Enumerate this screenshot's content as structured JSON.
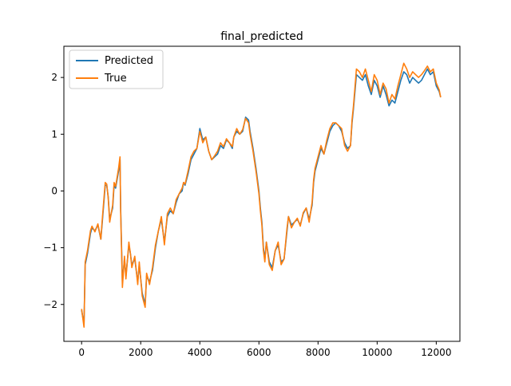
{
  "chart_data": {
    "type": "line",
    "title": "final_predicted",
    "xlabel": "",
    "ylabel": "",
    "xlim": [
      -600,
      12800
    ],
    "ylim": [
      -2.65,
      2.55
    ],
    "xticks": [
      0,
      2000,
      4000,
      6000,
      8000,
      10000,
      12000
    ],
    "xtick_labels": [
      "0",
      "2000",
      "4000",
      "6000",
      "8000",
      "10000",
      "12000"
    ],
    "yticks": [
      -2,
      -1,
      0,
      1,
      2
    ],
    "ytick_labels": [
      "−2",
      "−1",
      "0",
      "1",
      "2"
    ],
    "grid": false,
    "legend_position": "upper-left",
    "series": [
      {
        "name": "Predicted",
        "color": "#1f77b4",
        "points": [
          [
            0,
            -2.1
          ],
          [
            80,
            -2.35
          ],
          [
            120,
            -1.3
          ],
          [
            200,
            -1.1
          ],
          [
            300,
            -0.75
          ],
          [
            350,
            -0.65
          ],
          [
            450,
            -0.7
          ],
          [
            550,
            -0.6
          ],
          [
            650,
            -0.85
          ],
          [
            700,
            -0.55
          ],
          [
            800,
            0.1
          ],
          [
            850,
            0.1
          ],
          [
            900,
            -0.1
          ],
          [
            950,
            -0.5
          ],
          [
            1050,
            -0.3
          ],
          [
            1100,
            0.1
          ],
          [
            1150,
            0.05
          ],
          [
            1250,
            0.35
          ],
          [
            1300,
            0.55
          ],
          [
            1320,
            -0.3
          ],
          [
            1380,
            -1.6
          ],
          [
            1450,
            -1.2
          ],
          [
            1500,
            -1.5
          ],
          [
            1600,
            -0.95
          ],
          [
            1650,
            -1.1
          ],
          [
            1700,
            -1.3
          ],
          [
            1800,
            -1.2
          ],
          [
            1900,
            -1.6
          ],
          [
            1950,
            -1.3
          ],
          [
            2050,
            -1.8
          ],
          [
            2150,
            -2.0
          ],
          [
            2200,
            -1.5
          ],
          [
            2300,
            -1.6
          ],
          [
            2400,
            -1.4
          ],
          [
            2500,
            -1.0
          ],
          [
            2600,
            -0.7
          ],
          [
            2700,
            -0.5
          ],
          [
            2800,
            -0.9
          ],
          [
            2900,
            -0.45
          ],
          [
            3000,
            -0.35
          ],
          [
            3100,
            -0.4
          ],
          [
            3200,
            -0.2
          ],
          [
            3300,
            -0.05
          ],
          [
            3400,
            0.0
          ],
          [
            3450,
            0.15
          ],
          [
            3500,
            0.1
          ],
          [
            3600,
            0.3
          ],
          [
            3700,
            0.55
          ],
          [
            3800,
            0.65
          ],
          [
            3900,
            0.75
          ],
          [
            4000,
            1.1
          ],
          [
            4100,
            0.9
          ],
          [
            4200,
            0.95
          ],
          [
            4300,
            0.7
          ],
          [
            4400,
            0.55
          ],
          [
            4500,
            0.6
          ],
          [
            4600,
            0.65
          ],
          [
            4700,
            0.8
          ],
          [
            4800,
            0.75
          ],
          [
            4900,
            0.9
          ],
          [
            5000,
            0.85
          ],
          [
            5100,
            0.75
          ],
          [
            5150,
            0.95
          ],
          [
            5250,
            1.05
          ],
          [
            5350,
            1.0
          ],
          [
            5450,
            1.05
          ],
          [
            5550,
            1.3
          ],
          [
            5650,
            1.25
          ],
          [
            5700,
            1.05
          ],
          [
            5800,
            0.75
          ],
          [
            5900,
            0.4
          ],
          [
            6000,
            0.0
          ],
          [
            6050,
            -0.3
          ],
          [
            6100,
            -0.55
          ],
          [
            6150,
            -1.0
          ],
          [
            6200,
            -1.2
          ],
          [
            6250,
            -0.9
          ],
          [
            6350,
            -1.25
          ],
          [
            6450,
            -1.35
          ],
          [
            6550,
            -1.05
          ],
          [
            6650,
            -0.95
          ],
          [
            6750,
            -1.25
          ],
          [
            6850,
            -1.2
          ],
          [
            6950,
            -0.7
          ],
          [
            7000,
            -0.45
          ],
          [
            7100,
            -0.6
          ],
          [
            7200,
            -0.55
          ],
          [
            7300,
            -0.5
          ],
          [
            7400,
            -0.6
          ],
          [
            7500,
            -0.4
          ],
          [
            7600,
            -0.3
          ],
          [
            7700,
            -0.5
          ],
          [
            7800,
            -0.25
          ],
          [
            7850,
            0.15
          ],
          [
            7900,
            0.35
          ],
          [
            8000,
            0.55
          ],
          [
            8100,
            0.75
          ],
          [
            8200,
            0.65
          ],
          [
            8300,
            0.85
          ],
          [
            8400,
            1.05
          ],
          [
            8500,
            1.15
          ],
          [
            8600,
            1.2
          ],
          [
            8700,
            1.15
          ],
          [
            8800,
            1.05
          ],
          [
            8900,
            0.85
          ],
          [
            9000,
            0.75
          ],
          [
            9100,
            0.8
          ],
          [
            9150,
            1.2
          ],
          [
            9200,
            1.45
          ],
          [
            9300,
            2.05
          ],
          [
            9400,
            2.0
          ],
          [
            9500,
            1.95
          ],
          [
            9600,
            2.05
          ],
          [
            9700,
            1.85
          ],
          [
            9800,
            1.7
          ],
          [
            9900,
            1.95
          ],
          [
            10000,
            1.85
          ],
          [
            10100,
            1.65
          ],
          [
            10200,
            1.85
          ],
          [
            10300,
            1.7
          ],
          [
            10400,
            1.5
          ],
          [
            10500,
            1.6
          ],
          [
            10600,
            1.55
          ],
          [
            10700,
            1.75
          ],
          [
            10800,
            1.95
          ],
          [
            10900,
            2.1
          ],
          [
            11000,
            2.05
          ],
          [
            11100,
            1.9
          ],
          [
            11200,
            2.0
          ],
          [
            11300,
            1.95
          ],
          [
            11400,
            1.9
          ],
          [
            11500,
            1.95
          ],
          [
            11600,
            2.05
          ],
          [
            11700,
            2.15
          ],
          [
            11800,
            2.05
          ],
          [
            11900,
            2.1
          ],
          [
            12000,
            1.85
          ],
          [
            12100,
            1.75
          ],
          [
            12150,
            1.65
          ]
        ]
      },
      {
        "name": "True",
        "color": "#ff7f0e",
        "points": [
          [
            0,
            -2.08
          ],
          [
            80,
            -2.4
          ],
          [
            120,
            -1.25
          ],
          [
            200,
            -1.05
          ],
          [
            300,
            -0.7
          ],
          [
            350,
            -0.62
          ],
          [
            450,
            -0.72
          ],
          [
            550,
            -0.58
          ],
          [
            650,
            -0.85
          ],
          [
            700,
            -0.5
          ],
          [
            800,
            0.15
          ],
          [
            850,
            0.12
          ],
          [
            900,
            -0.12
          ],
          [
            950,
            -0.55
          ],
          [
            1050,
            -0.25
          ],
          [
            1100,
            0.15
          ],
          [
            1150,
            0.08
          ],
          [
            1250,
            0.4
          ],
          [
            1300,
            0.6
          ],
          [
            1320,
            -0.35
          ],
          [
            1380,
            -1.7
          ],
          [
            1450,
            -1.15
          ],
          [
            1500,
            -1.55
          ],
          [
            1600,
            -0.9
          ],
          [
            1650,
            -1.1
          ],
          [
            1700,
            -1.35
          ],
          [
            1800,
            -1.15
          ],
          [
            1900,
            -1.65
          ],
          [
            1950,
            -1.25
          ],
          [
            2050,
            -1.85
          ],
          [
            2150,
            -2.05
          ],
          [
            2200,
            -1.45
          ],
          [
            2300,
            -1.65
          ],
          [
            2400,
            -1.35
          ],
          [
            2500,
            -0.95
          ],
          [
            2600,
            -0.7
          ],
          [
            2700,
            -0.45
          ],
          [
            2800,
            -0.95
          ],
          [
            2900,
            -0.4
          ],
          [
            3000,
            -0.3
          ],
          [
            3100,
            -0.4
          ],
          [
            3200,
            -0.15
          ],
          [
            3300,
            -0.05
          ],
          [
            3400,
            0.05
          ],
          [
            3450,
            0.15
          ],
          [
            3500,
            0.12
          ],
          [
            3600,
            0.35
          ],
          [
            3700,
            0.6
          ],
          [
            3800,
            0.7
          ],
          [
            3900,
            0.75
          ],
          [
            4000,
            1.05
          ],
          [
            4100,
            0.85
          ],
          [
            4200,
            0.95
          ],
          [
            4300,
            0.7
          ],
          [
            4400,
            0.55
          ],
          [
            4500,
            0.62
          ],
          [
            4600,
            0.7
          ],
          [
            4700,
            0.85
          ],
          [
            4800,
            0.78
          ],
          [
            4900,
            0.92
          ],
          [
            5000,
            0.85
          ],
          [
            5100,
            0.78
          ],
          [
            5150,
            0.95
          ],
          [
            5250,
            1.1
          ],
          [
            5350,
            1.0
          ],
          [
            5450,
            1.08
          ],
          [
            5550,
            1.28
          ],
          [
            5650,
            1.2
          ],
          [
            5700,
            1.0
          ],
          [
            5800,
            0.7
          ],
          [
            5900,
            0.35
          ],
          [
            6000,
            -0.05
          ],
          [
            6050,
            -0.35
          ],
          [
            6100,
            -0.6
          ],
          [
            6150,
            -1.05
          ],
          [
            6200,
            -1.25
          ],
          [
            6250,
            -0.9
          ],
          [
            6350,
            -1.3
          ],
          [
            6450,
            -1.4
          ],
          [
            6550,
            -1.05
          ],
          [
            6650,
            -0.9
          ],
          [
            6750,
            -1.3
          ],
          [
            6850,
            -1.2
          ],
          [
            6950,
            -0.65
          ],
          [
            7000,
            -0.45
          ],
          [
            7100,
            -0.65
          ],
          [
            7200,
            -0.55
          ],
          [
            7300,
            -0.48
          ],
          [
            7400,
            -0.62
          ],
          [
            7500,
            -0.38
          ],
          [
            7600,
            -0.3
          ],
          [
            7700,
            -0.55
          ],
          [
            7800,
            -0.2
          ],
          [
            7850,
            0.2
          ],
          [
            7900,
            0.4
          ],
          [
            8000,
            0.6
          ],
          [
            8100,
            0.8
          ],
          [
            8200,
            0.65
          ],
          [
            8300,
            0.9
          ],
          [
            8400,
            1.1
          ],
          [
            8500,
            1.2
          ],
          [
            8600,
            1.2
          ],
          [
            8700,
            1.15
          ],
          [
            8800,
            1.1
          ],
          [
            8900,
            0.8
          ],
          [
            9000,
            0.7
          ],
          [
            9100,
            0.8
          ],
          [
            9150,
            1.25
          ],
          [
            9200,
            1.5
          ],
          [
            9300,
            2.15
          ],
          [
            9400,
            2.1
          ],
          [
            9500,
            2.0
          ],
          [
            9600,
            2.15
          ],
          [
            9700,
            1.95
          ],
          [
            9800,
            1.75
          ],
          [
            9900,
            2.05
          ],
          [
            10000,
            1.95
          ],
          [
            10100,
            1.7
          ],
          [
            10200,
            1.9
          ],
          [
            10300,
            1.8
          ],
          [
            10400,
            1.55
          ],
          [
            10500,
            1.7
          ],
          [
            10600,
            1.62
          ],
          [
            10700,
            1.85
          ],
          [
            10800,
            2.05
          ],
          [
            10900,
            2.25
          ],
          [
            11000,
            2.15
          ],
          [
            11100,
            2.0
          ],
          [
            11200,
            2.1
          ],
          [
            11300,
            2.05
          ],
          [
            11400,
            2.0
          ],
          [
            11500,
            2.05
          ],
          [
            11600,
            2.12
          ],
          [
            11700,
            2.2
          ],
          [
            11800,
            2.1
          ],
          [
            11900,
            2.15
          ],
          [
            12000,
            1.9
          ],
          [
            12100,
            1.78
          ],
          [
            12150,
            1.65
          ]
        ]
      }
    ]
  }
}
